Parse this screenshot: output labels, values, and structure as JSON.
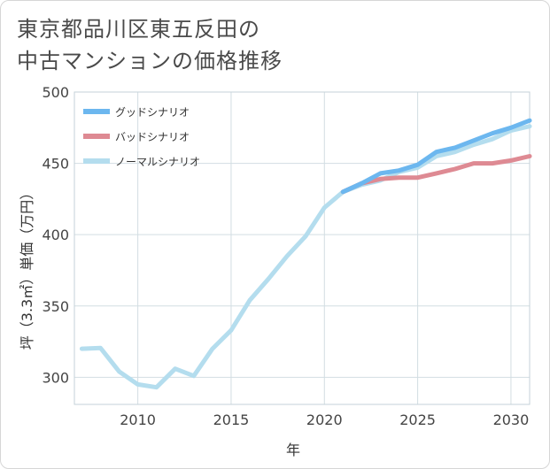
{
  "title_line1": "東京都品川区東五反田の",
  "title_line2": "中古マンションの価格推移",
  "chart_data": {
    "type": "line",
    "title": "東京都品川区東五反田の中古マンションの価格推移",
    "xlabel": "年",
    "ylabel": "坪（3.3㎡）単価（万円）",
    "xlim": [
      2006.6,
      2031
    ],
    "ylim": [
      281,
      500
    ],
    "xticks": [
      2010,
      2015,
      2020,
      2025,
      2030
    ],
    "yticks": [
      300,
      350,
      400,
      450,
      500
    ],
    "grid": true,
    "legend_position": "top-left",
    "series": [
      {
        "name": "グッドシナリオ",
        "color": "#6cb7ef",
        "x": [
          2021,
          2022,
          2023,
          2024,
          2025,
          2026,
          2027,
          2028,
          2029,
          2030,
          2031
        ],
        "y": [
          430,
          436,
          443,
          445,
          449,
          458,
          461,
          466,
          471,
          475,
          480
        ]
      },
      {
        "name": "バッドシナリオ",
        "color": "#de8a93",
        "x": [
          2021,
          2022,
          2023,
          2024,
          2025,
          2026,
          2027,
          2028,
          2029,
          2030,
          2031
        ],
        "y": [
          430,
          436,
          439,
          440,
          440,
          443,
          446,
          450,
          450,
          452,
          455
        ]
      },
      {
        "name": "ノーマルシナリオ",
        "color": "#b4ddee",
        "x": [
          2007,
          2008,
          2009,
          2010,
          2011,
          2012,
          2013,
          2014,
          2015,
          2016,
          2017,
          2018,
          2019,
          2020,
          2021,
          2022,
          2023,
          2024,
          2025,
          2026,
          2027,
          2028,
          2029,
          2030,
          2031
        ],
        "y": [
          320,
          320.5,
          304,
          295,
          293,
          306,
          301,
          320,
          333,
          354,
          369,
          385,
          399,
          419,
          430,
          435,
          438,
          444,
          447,
          455,
          458,
          463,
          467,
          473,
          476
        ]
      }
    ]
  }
}
